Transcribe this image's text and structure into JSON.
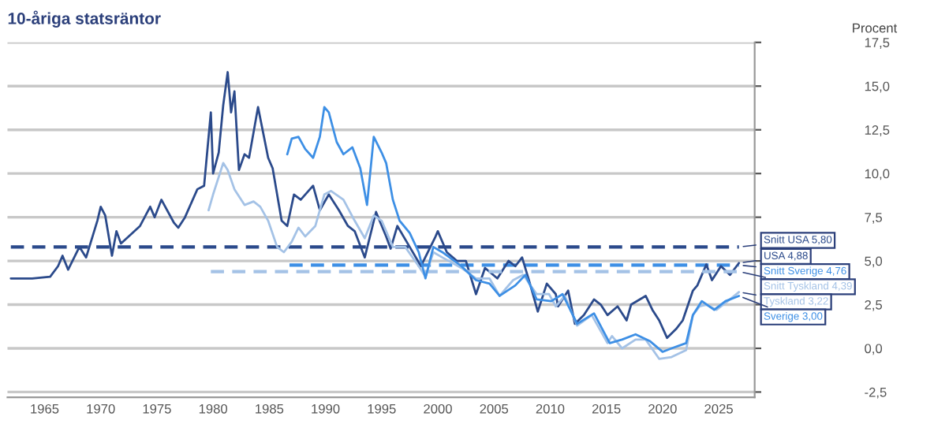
{
  "chart_data": {
    "type": "line",
    "title": "10-åriga statsräntor",
    "ylabel": "Procent",
    "xlim": [
      1961.7,
      2028.2
    ],
    "xticks": [
      1965,
      1970,
      1975,
      1980,
      1985,
      1990,
      1995,
      2000,
      2005,
      2010,
      2015,
      2020,
      2025
    ],
    "ylim": [
      -2.8,
      17.5
    ],
    "yticks": [
      {
        "value": -2.5,
        "label": "-2,5"
      },
      {
        "value": 0,
        "label": "0,0"
      },
      {
        "value": 2.5,
        "label": "2,5"
      },
      {
        "value": 5,
        "label": "5,0"
      },
      {
        "value": 7.5,
        "label": "7,5"
      },
      {
        "value": 10,
        "label": "10,0"
      },
      {
        "value": 12.5,
        "label": "12,5"
      },
      {
        "value": 15,
        "label": "15,0"
      },
      {
        "value": 17.5,
        "label": "17,5"
      }
    ],
    "grid": "y",
    "legend": false,
    "marker": "none",
    "series": [
      {
        "color": "#2b4a8b",
        "line_style": "dashed",
        "x": [
          1962.0,
          2026.8
        ],
        "values": [
          5.8,
          5.8
        ],
        "value_labels": [
          null,
          "Snitt USA 5,80"
        ]
      },
      {
        "color": "#3d8fe5",
        "line_style": "dashed",
        "x": [
          1986.8,
          2026.8
        ],
        "values": [
          4.76,
          4.76
        ],
        "value_labels": [
          null,
          "Snitt Sverige 4,76"
        ]
      },
      {
        "color": "#2b4a8b",
        "line_style": "solid",
        "x": [
          1962.0,
          1963.9,
          1965.5,
          1966.2,
          1966.6,
          1967.1,
          1968.1,
          1968.7,
          1969.7,
          1970.0,
          1970.4,
          1971.0,
          1971.4,
          1971.8,
          1973.5,
          1974.4,
          1974.8,
          1975.4,
          1976.5,
          1976.9,
          1977.5,
          1978.6,
          1979.2,
          1979.8,
          1980.0,
          1980.5,
          1980.9,
          1981.3,
          1981.6,
          1981.9,
          1982.3,
          1982.8,
          1983.2,
          1984.0,
          1984.9,
          1985.3,
          1986.1,
          1986.6,
          1987.2,
          1987.8,
          1988.9,
          1989.5,
          1990.3,
          1991.2,
          1992.0,
          1992.6,
          1993.5,
          1994.5,
          1995.4,
          1995.8,
          1996.4,
          1997.5,
          1998.5,
          1999.8,
          2000.0,
          2000.8,
          2001.7,
          2002.5,
          2003.4,
          2004.2,
          2005.3,
          2006.3,
          2006.9,
          2007.5,
          2008.2,
          2008.9,
          2009.7,
          2010.5,
          2010.7,
          2011.6,
          2012.2,
          2013.0,
          2013.9,
          2014.5,
          2015.1,
          2016.0,
          2016.8,
          2017.2,
          2018.5,
          2019.1,
          2019.7,
          2020.4,
          2021.2,
          2021.8,
          2022.7,
          2023.1,
          2023.9,
          2024.4,
          2025.2,
          2026.0,
          2026.8
        ],
        "values": [
          4.0,
          4.0,
          4.1,
          4.7,
          5.3,
          4.5,
          5.8,
          5.2,
          7.3,
          8.1,
          7.6,
          5.3,
          6.7,
          6.0,
          7.0,
          8.1,
          7.5,
          8.5,
          7.2,
          6.9,
          7.5,
          9.1,
          9.3,
          13.5,
          10.0,
          11.2,
          13.9,
          15.8,
          13.5,
          14.7,
          10.2,
          11.1,
          10.9,
          13.8,
          10.9,
          10.3,
          7.3,
          7.0,
          8.8,
          8.5,
          9.3,
          7.9,
          8.8,
          7.9,
          7.0,
          6.7,
          5.2,
          7.8,
          6.4,
          5.7,
          7.0,
          5.8,
          4.7,
          6.4,
          6.7,
          5.5,
          5.0,
          5.0,
          3.1,
          4.6,
          4.0,
          5.0,
          4.7,
          5.2,
          3.7,
          2.1,
          3.7,
          3.1,
          2.4,
          3.3,
          1.4,
          1.9,
          2.8,
          2.5,
          1.9,
          2.4,
          1.6,
          2.5,
          3.0,
          2.2,
          1.6,
          0.6,
          1.1,
          1.6,
          3.3,
          3.6,
          4.8,
          3.9,
          4.7,
          4.2,
          4.88
        ],
        "value_labels": [
          null,
          null,
          null,
          null,
          null,
          null,
          null,
          null,
          null,
          null,
          null,
          null,
          null,
          null,
          null,
          null,
          null,
          null,
          null,
          null,
          null,
          null,
          null,
          null,
          null,
          null,
          null,
          null,
          null,
          null,
          null,
          null,
          null,
          null,
          null,
          null,
          null,
          null,
          null,
          null,
          null,
          null,
          null,
          null,
          null,
          null,
          null,
          null,
          null,
          null,
          null,
          null,
          null,
          null,
          null,
          null,
          null,
          null,
          null,
          null,
          null,
          null,
          null,
          null,
          null,
          null,
          null,
          null,
          null,
          null,
          null,
          null,
          null,
          null,
          null,
          null,
          null,
          null,
          null,
          null,
          null,
          null,
          null,
          null,
          null,
          null,
          null,
          null,
          null,
          null,
          "USA 4,88"
        ]
      },
      {
        "color": "#a4c2e6",
        "line_style": "dashed",
        "x": [
          1979.8,
          2026.8
        ],
        "values": [
          4.39,
          4.39
        ],
        "value_labels": [
          null,
          "Snitt Tyskland 4,39"
        ]
      },
      {
        "color": "#a4c2e6",
        "line_style": "solid",
        "x": [
          1979.6,
          1980.0,
          1980.9,
          1981.3,
          1981.9,
          1982.8,
          1983.6,
          1984.2,
          1984.9,
          1985.7,
          1986.3,
          1987.0,
          1987.6,
          1988.2,
          1989.1,
          1989.9,
          1990.5,
          1991.6,
          1992.6,
          1993.5,
          1994.3,
          1995.0,
          1996.0,
          1997.1,
          1998.3,
          1998.9,
          1999.6,
          2000.4,
          2002.1,
          2003.4,
          2004.6,
          2005.5,
          2006.7,
          2007.6,
          2008.8,
          2009.9,
          2010.5,
          2011.3,
          2012.4,
          2013.7,
          2015.1,
          2015.5,
          2016.4,
          2017.6,
          2018.5,
          2019.7,
          2020.8,
          2022.1,
          2022.7,
          2023.3,
          2023.9,
          2024.8,
          2025.8,
          2026.8
        ],
        "values": [
          7.9,
          8.8,
          10.6,
          10.2,
          9.1,
          8.2,
          8.4,
          8.1,
          7.3,
          5.8,
          5.5,
          6.1,
          6.9,
          6.4,
          7.0,
          8.8,
          9.0,
          8.5,
          7.3,
          6.3,
          7.6,
          7.3,
          5.8,
          5.8,
          4.7,
          4.1,
          5.5,
          5.2,
          4.6,
          4.0,
          4.0,
          3.0,
          3.9,
          4.2,
          3.1,
          3.1,
          2.4,
          3.0,
          1.3,
          1.9,
          0.3,
          0.7,
          0.0,
          0.5,
          0.5,
          -0.6,
          -0.5,
          -0.1,
          1.9,
          2.4,
          2.5,
          2.2,
          2.7,
          3.22
        ],
        "value_labels": [
          null,
          null,
          null,
          null,
          null,
          null,
          null,
          null,
          null,
          null,
          null,
          null,
          null,
          null,
          null,
          null,
          null,
          null,
          null,
          null,
          null,
          null,
          null,
          null,
          null,
          null,
          null,
          null,
          null,
          null,
          null,
          null,
          null,
          null,
          null,
          null,
          null,
          null,
          null,
          null,
          null,
          null,
          null,
          null,
          null,
          null,
          null,
          null,
          null,
          null,
          null,
          null,
          null,
          "Tyskland 3,22"
        ]
      },
      {
        "color": "#3d8fe5",
        "line_style": "solid",
        "x": [
          1986.6,
          1987.0,
          1987.6,
          1988.2,
          1988.9,
          1989.5,
          1989.9,
          1990.3,
          1991.0,
          1991.6,
          1992.4,
          1993.1,
          1993.7,
          1994.3,
          1995.0,
          1995.4,
          1996.0,
          1996.6,
          1997.5,
          1998.3,
          1998.9,
          1999.6,
          2000.4,
          2002.1,
          2003.4,
          2004.6,
          2005.5,
          2006.9,
          2007.8,
          2008.8,
          2010.1,
          2011.1,
          2012.4,
          2013.9,
          2015.3,
          2016.4,
          2017.6,
          2018.9,
          2020.0,
          2020.8,
          2022.1,
          2022.7,
          2023.5,
          2024.6,
          2025.6,
          2026.8
        ],
        "values": [
          11.1,
          12.0,
          12.1,
          11.4,
          10.9,
          12.1,
          13.8,
          13.5,
          11.8,
          11.1,
          11.5,
          10.3,
          8.2,
          12.1,
          11.2,
          10.6,
          8.5,
          7.3,
          6.6,
          5.5,
          4.0,
          5.8,
          5.5,
          4.7,
          3.9,
          3.7,
          3.0,
          3.6,
          4.2,
          2.8,
          2.7,
          3.1,
          1.4,
          2.0,
          0.3,
          0.5,
          0.8,
          0.4,
          -0.2,
          0.0,
          0.3,
          1.9,
          2.7,
          2.2,
          2.7,
          3.0
        ],
        "value_labels": [
          null,
          null,
          null,
          null,
          null,
          null,
          null,
          null,
          null,
          null,
          null,
          null,
          null,
          null,
          null,
          null,
          null,
          null,
          null,
          null,
          null,
          null,
          null,
          null,
          null,
          null,
          null,
          null,
          null,
          null,
          null,
          null,
          null,
          null,
          null,
          null,
          null,
          null,
          null,
          null,
          null,
          null,
          null,
          null,
          null,
          "Sverige 3,00"
        ]
      }
    ]
  }
}
